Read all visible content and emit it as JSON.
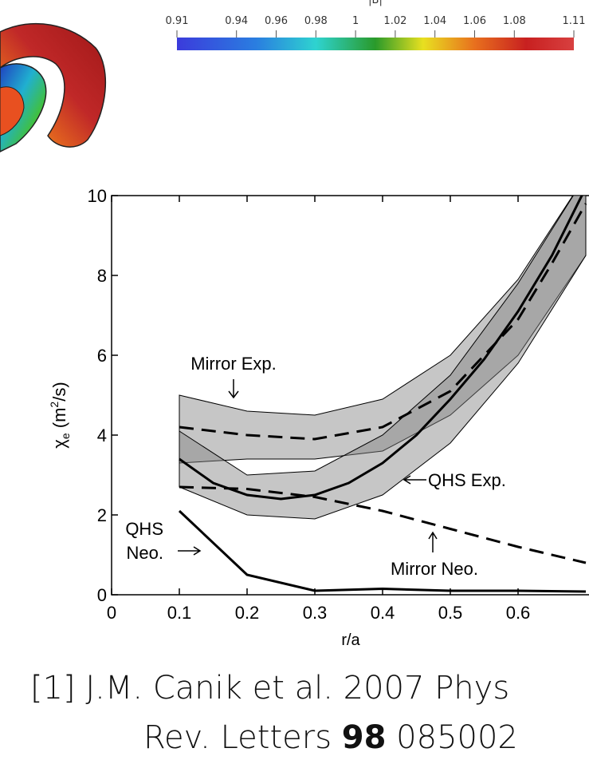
{
  "colorbar": {
    "title": "|B|",
    "lim": [
      0.91,
      1.11
    ],
    "ticks": [
      0.91,
      0.94,
      0.96,
      0.98,
      1,
      1.02,
      1.04,
      1.06,
      1.08,
      1.11
    ]
  },
  "chart_data": {
    "type": "line",
    "xlabel": "r/a",
    "ylabel_parts": [
      "χ",
      "e",
      " (m",
      "2",
      "/s)"
    ],
    "xlim": [
      0,
      0.7
    ],
    "ylim": [
      0,
      10
    ],
    "xticks": [
      0,
      0.1,
      0.2,
      0.3,
      0.4,
      0.5,
      0.6
    ],
    "yticks": [
      0,
      2,
      4,
      6,
      8,
      10
    ],
    "bands": [
      {
        "color": "#808080",
        "x": [
          0.1,
          0.2,
          0.3,
          0.4,
          0.5,
          0.6,
          0.7
        ],
        "upper": [
          5.0,
          4.6,
          4.5,
          4.9,
          6.0,
          7.9,
          10.5
        ],
        "lower": [
          3.3,
          3.4,
          3.4,
          3.6,
          4.5,
          6.0,
          8.5
        ]
      },
      {
        "color": "#808080",
        "x": [
          0.1,
          0.2,
          0.3,
          0.4,
          0.5,
          0.6,
          0.7
        ],
        "upper": [
          4.1,
          3.0,
          3.1,
          4.0,
          5.5,
          7.8,
          10.5
        ],
        "lower": [
          2.7,
          2.0,
          1.9,
          2.5,
          3.8,
          5.8,
          8.5
        ]
      }
    ],
    "series": [
      {
        "color": "#000000",
        "dashed": true,
        "x": [
          0.1,
          0.2,
          0.3,
          0.4,
          0.5,
          0.6,
          0.65,
          0.7
        ],
        "values": [
          4.2,
          4.0,
          3.9,
          4.2,
          5.1,
          6.9,
          8.3,
          9.8
        ]
      },
      {
        "color": "#000000",
        "dashed": false,
        "x": [
          0.1,
          0.15,
          0.2,
          0.25,
          0.3,
          0.35,
          0.4,
          0.45,
          0.5,
          0.55,
          0.6,
          0.65,
          0.7
        ],
        "values": [
          3.4,
          2.8,
          2.5,
          2.4,
          2.5,
          2.8,
          3.3,
          4.0,
          4.9,
          5.9,
          7.1,
          8.5,
          10.2
        ]
      },
      {
        "color": "#000000",
        "dashed": true,
        "x": [
          0.1,
          0.2,
          0.3,
          0.4,
          0.5,
          0.6,
          0.7
        ],
        "values": [
          2.7,
          2.65,
          2.45,
          2.1,
          1.65,
          1.2,
          0.8
        ]
      },
      {
        "color": "#000000",
        "dashed": false,
        "x": [
          0.1,
          0.2,
          0.3,
          0.4,
          0.5,
          0.6,
          0.7
        ],
        "values": [
          2.1,
          0.5,
          0.1,
          0.15,
          0.1,
          0.1,
          0.08
        ]
      }
    ],
    "annotations": [
      "Mirror Exp.",
      "QHS Exp.",
      "QHS",
      "Neo.",
      "Mirror Neo."
    ]
  },
  "citation": {
    "line1": "[1] J.M. Canik et al. 2007 Phys",
    "line2_pre": "Rev. Letters ",
    "volume": "98",
    "line2_post": " 085002"
  }
}
